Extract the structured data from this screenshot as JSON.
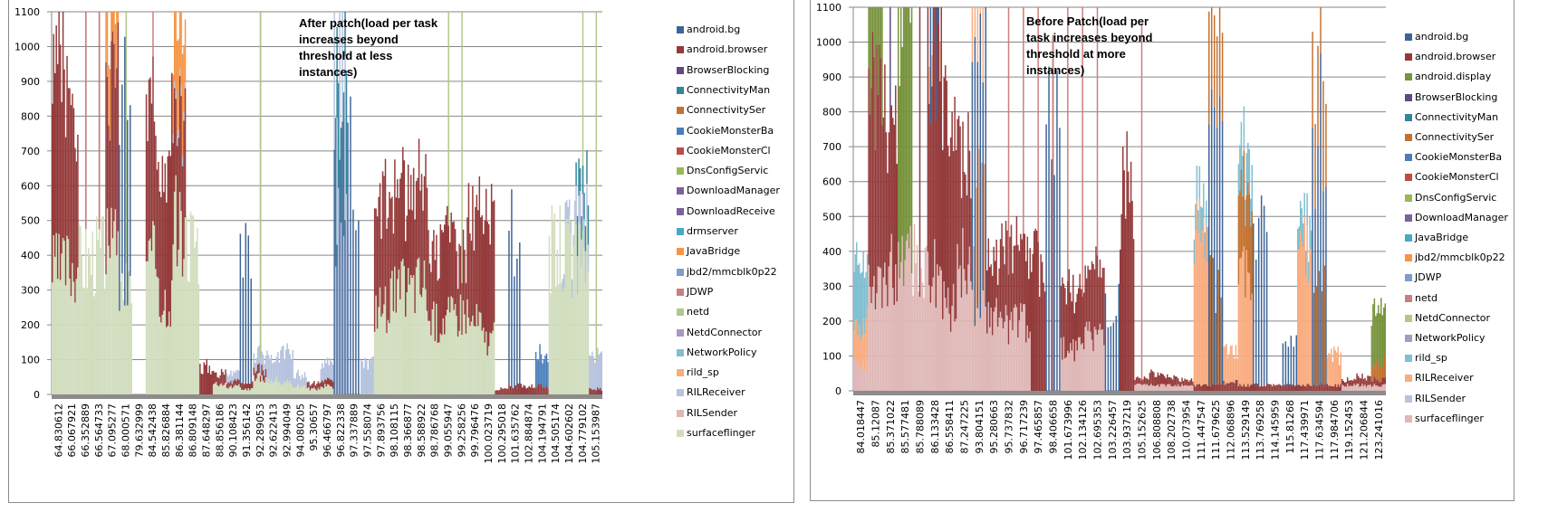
{
  "chart_data": [
    {
      "type": "bar",
      "stacked": true,
      "title": "After patch(load per task increases beyond threshold at less instances)",
      "xlabel": "",
      "ylabel": "",
      "ylim": [
        0,
        1100
      ],
      "yticks": [
        0,
        100,
        200,
        300,
        400,
        500,
        600,
        700,
        800,
        900,
        1000,
        1100
      ],
      "grid": true,
      "legend_position": "right",
      "categories": [
        "64.830612",
        "66.067921",
        "66.352889",
        "66.564733",
        "67.095277",
        "68.000571",
        "79.632999",
        "84.542438",
        "85.826884",
        "86.381144",
        "86.809148",
        "87.648297",
        "88.856186",
        "90.108423",
        "91.356142",
        "92.289053",
        "92.622413",
        "92.994049",
        "94.080205",
        "95.30657",
        "96.466797",
        "96.822338",
        "97.337889",
        "97.558074",
        "97.893756",
        "98.108115",
        "98.366877",
        "98.588922",
        "98.786768",
        "99.055947",
        "99.258256",
        "99.796476",
        "100.023719",
        "100.295018",
        "101.635762",
        "102.884874",
        "104.194791",
        "104.505174",
        "104.602602",
        "104.779102",
        "105.153987"
      ],
      "legend": [
        "android.bg",
        "android.browser",
        "BrowserBlocking",
        "ConnectivityMan",
        "ConnectivitySer",
        "CookieMonsterBa",
        "CookieMonsterCl",
        "DnsConfigServic",
        "DownloadManager",
        "DownloadReceive",
        "drmserver",
        "JavaBridge",
        "jbd2/mmcblk0p22",
        "JDWP",
        "netd",
        "NetdConnector",
        "NetworkPolicy",
        "rild_sp",
        "RILReceiver",
        "RILSender",
        "surfaceflinger"
      ],
      "series": [
        {
          "name": "surfaceflinger",
          "values": [
            450,
            470,
            480,
            500,
            520,
            380,
            0,
            480,
            350,
            600,
            560,
            0,
            40,
            30,
            20,
            60,
            50,
            40,
            30,
            20,
            30,
            0,
            0,
            0,
            320,
            360,
            380,
            400,
            260,
            280,
            300,
            260,
            200,
            0,
            0,
            0,
            0,
            520,
            500,
            480,
            0
          ]
        },
        {
          "name": "android.browser",
          "values": [
            780,
            600,
            1020,
            1020,
            600,
            0,
            0,
            520,
            600,
            380,
            0,
            100,
            40,
            20,
            20,
            30,
            0,
            0,
            0,
            20,
            20,
            0,
            0,
            0,
            400,
            360,
            340,
            380,
            300,
            320,
            240,
            380,
            420,
            20,
            30,
            30,
            30,
            0,
            0,
            0,
            20
          ]
        },
        {
          "name": "android.bg",
          "values": [
            0,
            0,
            0,
            0,
            0,
            790,
            1010,
            0,
            0,
            0,
            0,
            0,
            0,
            0,
            530,
            0,
            0,
            0,
            0,
            0,
            0,
            780,
            830,
            0,
            0,
            0,
            0,
            0,
            0,
            0,
            0,
            0,
            0,
            0,
            560,
            0,
            0,
            0,
            0,
            0,
            0
          ]
        },
        {
          "name": "RILReceiver",
          "values": [
            0,
            0,
            0,
            0,
            0,
            0,
            0,
            0,
            0,
            30,
            0,
            0,
            0,
            30,
            0,
            50,
            90,
            110,
            40,
            0,
            60,
            580,
            0,
            110,
            0,
            0,
            0,
            0,
            0,
            0,
            0,
            0,
            0,
            0,
            0,
            0,
            0,
            0,
            60,
            120,
            110
          ]
        },
        {
          "name": "netd",
          "values": [
            1020,
            0,
            1020,
            1020,
            1020,
            0,
            0,
            1020,
            0,
            0,
            0,
            0,
            0,
            0,
            0,
            1010,
            0,
            0,
            0,
            0,
            0,
            0,
            0,
            0,
            0,
            0,
            0,
            0,
            0,
            0,
            0,
            0,
            0,
            0,
            0,
            0,
            0,
            0,
            0,
            0,
            0
          ]
        },
        {
          "name": "NetdConnector",
          "values": [
            0,
            0,
            0,
            0,
            0,
            1020,
            0,
            0,
            0,
            0,
            0,
            0,
            0,
            0,
            0,
            1010,
            0,
            0,
            0,
            0,
            0,
            0,
            0,
            0,
            0,
            0,
            0,
            0,
            0,
            1020,
            1020,
            0,
            0,
            0,
            0,
            0,
            0,
            0,
            0,
            1020,
            1020
          ]
        },
        {
          "name": "CookieMonsterBa",
          "values": [
            0,
            0,
            0,
            0,
            0,
            0,
            0,
            0,
            0,
            0,
            0,
            0,
            0,
            0,
            0,
            0,
            0,
            0,
            0,
            0,
            0,
            0,
            0,
            0,
            0,
            0,
            0,
            0,
            0,
            0,
            0,
            0,
            0,
            0,
            0,
            0,
            110,
            0,
            0,
            0,
            0
          ]
        },
        {
          "name": "ConnectivitySer",
          "values": [
            0,
            0,
            0,
            0,
            1020,
            0,
            0,
            0,
            0,
            0,
            0,
            0,
            0,
            0,
            0,
            0,
            0,
            0,
            0,
            0,
            0,
            0,
            0,
            0,
            0,
            0,
            0,
            0,
            0,
            0,
            0,
            0,
            0,
            0,
            0,
            0,
            0,
            0,
            0,
            0,
            0
          ]
        },
        {
          "name": "JavaBridge",
          "values": [
            0,
            0,
            0,
            0,
            270,
            0,
            0,
            0,
            0,
            290,
            0,
            0,
            0,
            0,
            0,
            0,
            0,
            0,
            0,
            0,
            0,
            0,
            0,
            0,
            0,
            0,
            0,
            0,
            0,
            0,
            0,
            0,
            0,
            0,
            0,
            0,
            0,
            0,
            0,
            0,
            0
          ]
        },
        {
          "name": "drmserver",
          "values": [
            0,
            0,
            0,
            0,
            0,
            0,
            0,
            0,
            0,
            0,
            0,
            0,
            0,
            0,
            0,
            0,
            0,
            0,
            0,
            0,
            0,
            440,
            0,
            0,
            0,
            0,
            0,
            0,
            0,
            0,
            0,
            0,
            0,
            0,
            0,
            0,
            0,
            0,
            0,
            110,
            0
          ]
        }
      ]
    },
    {
      "type": "bar",
      "stacked": true,
      "title": "Before Patch(load per task increases beyond threshold at more instances)",
      "xlabel": "",
      "ylabel": "",
      "ylim": [
        0,
        1100
      ],
      "yticks": [
        0,
        100,
        200,
        300,
        400,
        500,
        600,
        700,
        800,
        900,
        1000,
        1100
      ],
      "grid": true,
      "legend_position": "right",
      "categories": [
        "84.018447",
        "85.12087",
        "85.371022",
        "85.577481",
        "85.788089",
        "86.133428",
        "86.558411",
        "87.247225",
        "93.804151",
        "95.280663",
        "95.737832",
        "96.717239",
        "97.465857",
        "98.406658",
        "101.673996",
        "102.134126",
        "102.695353",
        "103.226457",
        "103.937219",
        "105.152625",
        "106.808808",
        "108.202738",
        "110.073954",
        "111.447547",
        "111.679625",
        "112.068896",
        "113.529149",
        "113.769258",
        "114.145959",
        "115.81268",
        "117.439971",
        "117.634594",
        "117.984706",
        "119.152453",
        "121.206844",
        "123.241016"
      ],
      "legend": [
        "android.bg",
        "android.browser",
        "android.display",
        "BrowserBlocking",
        "ConnectivityMan",
        "ConnectivitySer",
        "CookieMonsterBa",
        "CookieMonsterCl",
        "DnsConfigServic",
        "DownloadManager",
        "JavaBridge",
        "jbd2/mmcblk0p22",
        "JDWP",
        "netd",
        "NetdConnector",
        "NetworkPolicy",
        "rild_sp",
        "RILReceiver",
        "RILSender",
        "surfaceflinger"
      ],
      "series": [
        {
          "name": "surfaceflinger",
          "values": [
            100,
            380,
            440,
            520,
            480,
            420,
            300,
            460,
            280,
            260,
            240,
            240,
            0,
            0,
            150,
            200,
            200,
            0,
            0,
            20,
            20,
            20,
            20,
            0,
            0,
            0,
            0,
            0,
            0,
            0,
            0,
            0,
            0,
            20,
            20,
            20
          ]
        },
        {
          "name": "android.browser",
          "values": [
            0,
            700,
            580,
            0,
            1020,
            820,
            660,
            420,
            0,
            200,
            260,
            300,
            460,
            1020,
            240,
            200,
            240,
            0,
            720,
            20,
            40,
            30,
            20,
            20,
            20,
            30,
            20,
            20,
            20,
            20,
            20,
            20,
            20,
            20,
            30,
            20
          ]
        },
        {
          "name": "android.display",
          "values": [
            0,
            480,
            0,
            960,
            0,
            0,
            0,
            0,
            0,
            0,
            0,
            0,
            0,
            0,
            0,
            0,
            0,
            0,
            0,
            0,
            0,
            0,
            0,
            0,
            0,
            0,
            0,
            0,
            0,
            0,
            0,
            0,
            0,
            0,
            0,
            0
          ]
        },
        {
          "name": "android.bg",
          "values": [
            0,
            0,
            0,
            0,
            0,
            780,
            1020,
            0,
            880,
            0,
            0,
            0,
            0,
            920,
            0,
            0,
            0,
            300,
            0,
            0,
            0,
            0,
            0,
            0,
            910,
            0,
            0,
            540,
            0,
            140,
            0,
            910,
            0,
            0,
            0,
            0
          ]
        },
        {
          "name": "RILReceiver",
          "values": [
            150,
            0,
            0,
            0,
            0,
            120,
            0,
            0,
            420,
            0,
            0,
            0,
            0,
            0,
            0,
            0,
            0,
            0,
            0,
            0,
            0,
            0,
            0,
            520,
            0,
            110,
            380,
            0,
            0,
            0,
            470,
            0,
            110,
            0,
            0,
            0
          ]
        },
        {
          "name": "netd",
          "values": [
            0,
            0,
            0,
            0,
            0,
            0,
            0,
            0,
            0,
            0,
            1020,
            1020,
            1020,
            1020,
            1020,
            1020,
            1020,
            0,
            0,
            1020,
            0,
            0,
            0,
            0,
            0,
            0,
            0,
            0,
            0,
            0,
            0,
            0,
            0,
            0,
            0,
            0
          ]
        },
        {
          "name": "ConnectivitySer",
          "values": [
            0,
            0,
            0,
            0,
            0,
            0,
            0,
            0,
            0,
            0,
            0,
            0,
            0,
            0,
            0,
            0,
            0,
            0,
            0,
            0,
            0,
            0,
            0,
            0,
            360,
            0,
            270,
            0,
            0,
            0,
            0,
            360,
            0,
            0,
            0,
            60
          ]
        },
        {
          "name": "rild_sp",
          "values": [
            210,
            0,
            0,
            0,
            0,
            0,
            0,
            0,
            0,
            0,
            0,
            0,
            0,
            0,
            0,
            0,
            0,
            0,
            0,
            0,
            0,
            0,
            0,
            100,
            0,
            0,
            130,
            0,
            0,
            0,
            100,
            0,
            0,
            0,
            0,
            0
          ]
        },
        {
          "name": "BrowserBlocking",
          "values": [
            0,
            0,
            1020,
            0,
            0,
            0,
            0,
            0,
            0,
            0,
            0,
            0,
            0,
            0,
            0,
            0,
            0,
            0,
            0,
            0,
            0,
            0,
            0,
            0,
            0,
            0,
            0,
            0,
            0,
            0,
            0,
            0,
            0,
            0,
            0,
            0
          ]
        },
        {
          "name": "NetdConnector",
          "values": [
            0,
            0,
            0,
            0,
            0,
            0,
            0,
            0,
            0,
            0,
            0,
            0,
            0,
            0,
            0,
            0,
            0,
            0,
            0,
            0,
            0,
            0,
            0,
            0,
            0,
            0,
            0,
            0,
            0,
            0,
            0,
            0,
            0,
            0,
            0,
            200
          ]
        }
      ]
    }
  ],
  "colors": {
    "android.bg": "#3d6498",
    "android.browser": "#943a3a",
    "android.display": "#77933c",
    "BrowserBlocking": "#5f4a82",
    "ConnectivityMan": "#31859c",
    "ConnectivitySer": "#c4712f",
    "CookieMonsterBa": "#4a7ebb",
    "CookieMonsterCl": "#be4b48",
    "DnsConfigServic": "#98b954",
    "DownloadManager": "#7d60a0",
    "DownloadReceive": "#7d60a0",
    "drmserver": "#46aac5",
    "JavaBridge": "#f69546",
    "jbd2/mmcblk0p22": "#7f9ccb",
    "JDWP": "#cb7f7d",
    "netd": "#b0c88a",
    "NetdConnector": "#a898c2",
    "NetworkPolicy": "#7fbfd2",
    "rild_sp": "#f9ac7f",
    "RILReceiver": "#b6c3de",
    "RILSender": "#dfb7b6",
    "surfaceflinger": "#d1ddbd"
  },
  "right_colors": {
    "android.bg": "#3d6498",
    "android.browser": "#943a3a",
    "android.display": "#77933c",
    "BrowserBlocking": "#5f4a82",
    "ConnectivityMan": "#31859c",
    "ConnectivitySer": "#c4712f",
    "CookieMonsterBa": "#4a7ebb",
    "CookieMonsterCl": "#be4b48",
    "DnsConfigServic": "#98b954",
    "DownloadManager": "#7d60a0",
    "JavaBridge": "#46aac5",
    "jbd2/mmcblk0p22": "#f69546",
    "JDWP": "#7f9ccb",
    "netd": "#cb7f7d",
    "NetdConnector": "#b0c88a",
    "NetworkPolicy": "#a898c2",
    "rild_sp": "#7fbfd2",
    "RILReceiver": "#f9ac7f",
    "RILSender": "#b6c3de",
    "surfaceflinger": "#dfb7b6"
  },
  "left_series_colors": {
    "surfaceflinger": "#d1ddbd",
    "android.browser": "#943a3a",
    "android.bg": "#3d6498",
    "RILReceiver": "#b6c3de",
    "netd": "#cb7f7d",
    "NetdConnector": "#b0c88a",
    "CookieMonsterBa": "#4a7ebb",
    "ConnectivitySer": "#c4712f",
    "JavaBridge": "#f69546",
    "drmserver": "#31859c"
  },
  "right_series_colors": {
    "surfaceflinger": "#dfb7b6",
    "android.browser": "#943a3a",
    "android.display": "#77933c",
    "android.bg": "#3d6498",
    "RILReceiver": "#f9ac7f",
    "netd": "#cb7f7d",
    "ConnectivitySer": "#c4712f",
    "rild_sp": "#7fbfd2",
    "BrowserBlocking": "#5f4a82",
    "NetdConnector": "#77933c"
  }
}
